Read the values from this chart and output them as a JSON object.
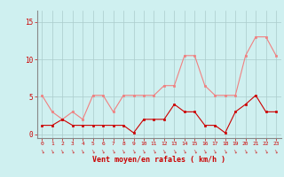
{
  "x": [
    0,
    1,
    2,
    3,
    4,
    5,
    6,
    7,
    8,
    9,
    10,
    11,
    12,
    13,
    14,
    15,
    16,
    17,
    18,
    19,
    20,
    21,
    22,
    23
  ],
  "rafales": [
    5.2,
    3.0,
    2.0,
    3.0,
    2.0,
    5.2,
    5.2,
    3.0,
    5.2,
    5.2,
    5.2,
    5.2,
    6.5,
    6.5,
    10.5,
    10.5,
    6.5,
    5.2,
    5.2,
    5.2,
    10.5,
    13.0,
    13.0,
    10.5
  ],
  "moyen": [
    1.2,
    1.2,
    2.0,
    1.2,
    1.2,
    1.2,
    1.2,
    1.2,
    1.2,
    0.2,
    2.0,
    2.0,
    2.0,
    4.0,
    3.0,
    3.0,
    1.2,
    1.2,
    0.2,
    3.0,
    4.0,
    5.2,
    3.0,
    3.0
  ],
  "bg_color": "#cff0f0",
  "grid_color": "#aacccc",
  "line_color_rafales": "#f08080",
  "line_color_moyen": "#cc0000",
  "xlabel": "Vent moyen/en rafales ( km/h )",
  "xlabel_color": "#cc0000",
  "tick_color": "#cc0000",
  "yticks": [
    0,
    5,
    10,
    15
  ],
  "ylim": [
    -0.5,
    16.5
  ],
  "xlim": [
    -0.5,
    23.5
  ]
}
